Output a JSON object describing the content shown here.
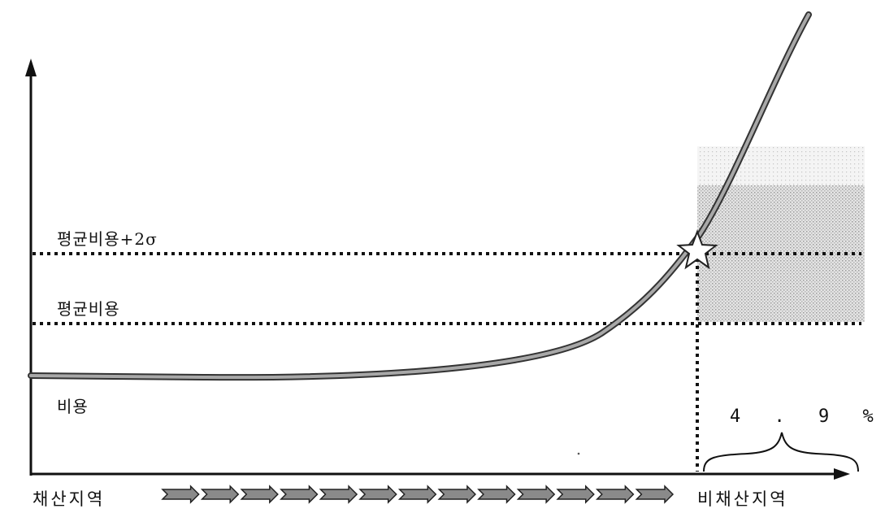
{
  "labels": {
    "mean_cost_plus_2sigma": "평균비용+2σ",
    "mean_cost": "평균비용",
    "cost": "비용",
    "mining_area": "채산지역",
    "non_mining_area": "비채산지역",
    "percentage": "4 . 9 %"
  },
  "arrow_count": 13,
  "colors": {
    "line": "#111111",
    "curve": "#777777",
    "shade": "#cfcfcf",
    "arrows": "#8a8a8a"
  },
  "icons": {
    "marker": "star-icon",
    "brace": "curly-brace-icon"
  }
}
